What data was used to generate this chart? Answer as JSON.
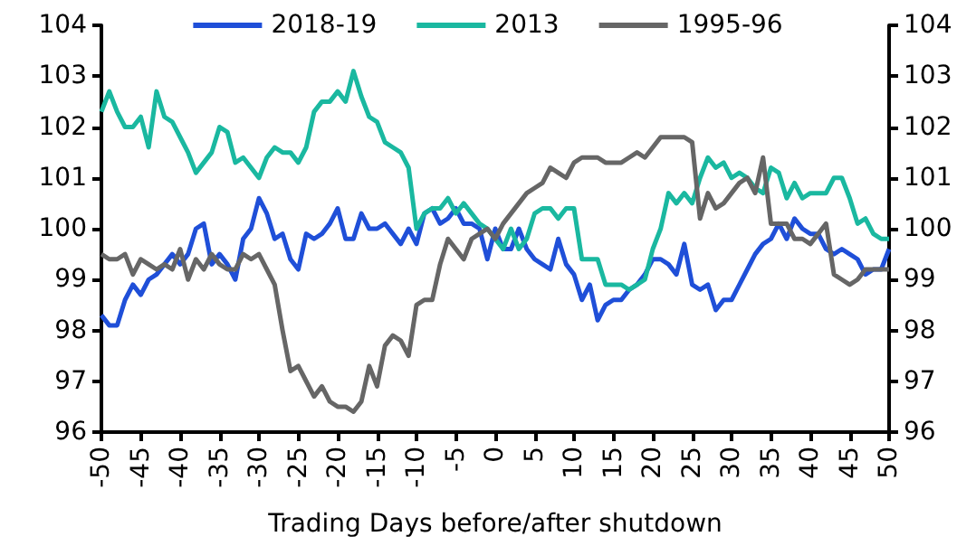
{
  "chart_data": {
    "type": "line",
    "xlabel": "Trading Days before/after shutdown",
    "x": [
      -50,
      -49,
      -48,
      -47,
      -46,
      -45,
      -44,
      -43,
      -42,
      -41,
      -40,
      -39,
      -38,
      -37,
      -36,
      -35,
      -34,
      -33,
      -32,
      -31,
      -30,
      -29,
      -28,
      -27,
      -26,
      -25,
      -24,
      -23,
      -22,
      -21,
      -20,
      -19,
      -18,
      -17,
      -16,
      -15,
      -14,
      -13,
      -12,
      -11,
      -10,
      -9,
      -8,
      -7,
      -6,
      -5,
      -4,
      -3,
      -2,
      -1,
      0,
      1,
      2,
      3,
      4,
      5,
      6,
      7,
      8,
      9,
      10,
      11,
      12,
      13,
      14,
      15,
      16,
      17,
      18,
      19,
      20,
      21,
      22,
      23,
      24,
      25,
      26,
      27,
      28,
      29,
      30,
      31,
      32,
      33,
      34,
      35,
      36,
      37,
      38,
      39,
      40,
      41,
      42,
      43,
      44,
      45,
      46,
      47,
      48,
      49,
      50
    ],
    "series": [
      {
        "name": "2018-19",
        "color": "#1f4fd8",
        "values": [
          98.3,
          98.1,
          98.1,
          98.6,
          98.9,
          98.7,
          99.0,
          99.1,
          99.3,
          99.5,
          99.3,
          99.5,
          100.0,
          100.1,
          99.3,
          99.5,
          99.3,
          99.0,
          99.8,
          100.0,
          100.6,
          100.3,
          99.8,
          99.9,
          99.4,
          99.2,
          99.9,
          99.8,
          99.9,
          100.1,
          100.4,
          99.8,
          99.8,
          100.3,
          100.0,
          100.0,
          100.1,
          99.9,
          99.7,
          100.0,
          99.7,
          100.3,
          100.4,
          100.1,
          100.2,
          100.4,
          100.1,
          100.1,
          100.0,
          99.4,
          100.0,
          99.6,
          99.6,
          100.0,
          99.6,
          99.4,
          99.3,
          99.2,
          99.8,
          99.3,
          99.1,
          98.6,
          98.9,
          98.2,
          98.5,
          98.6,
          98.6,
          98.8,
          98.9,
          99.1,
          99.4,
          99.4,
          99.3,
          99.1,
          99.7,
          98.9,
          98.8,
          98.9,
          98.4,
          98.6,
          98.6,
          98.9,
          99.2,
          99.5,
          99.7,
          99.8,
          100.1,
          99.8,
          100.2,
          100.0,
          99.9,
          99.9,
          99.6,
          99.5,
          99.6,
          99.5,
          99.4,
          99.1,
          99.2,
          99.2,
          99.6
        ]
      },
      {
        "name": "2013",
        "color": "#1ab8a0",
        "values": [
          102.3,
          102.7,
          102.3,
          102.0,
          102.0,
          102.2,
          101.6,
          102.7,
          102.2,
          102.1,
          101.8,
          101.5,
          101.1,
          101.3,
          101.5,
          102.0,
          101.9,
          101.3,
          101.4,
          101.2,
          101.0,
          101.4,
          101.6,
          101.5,
          101.5,
          101.3,
          101.6,
          102.3,
          102.5,
          102.5,
          102.7,
          102.5,
          103.1,
          102.6,
          102.2,
          102.1,
          101.7,
          101.6,
          101.5,
          101.2,
          100.0,
          100.3,
          100.4,
          100.4,
          100.6,
          100.3,
          100.5,
          100.3,
          100.1,
          100.0,
          99.8,
          99.6,
          100.0,
          99.6,
          99.8,
          100.3,
          100.4,
          100.4,
          100.2,
          100.4,
          100.4,
          99.4,
          99.4,
          99.4,
          98.9,
          98.9,
          98.9,
          98.8,
          98.9,
          99.0,
          99.6,
          100.0,
          100.7,
          100.5,
          100.7,
          100.5,
          101.0,
          101.4,
          101.2,
          101.3,
          101.0,
          101.1,
          101.0,
          100.8,
          100.7,
          101.2,
          101.1,
          100.6,
          100.9,
          100.6,
          100.7,
          100.7,
          100.7,
          101.0,
          101.0,
          100.6,
          100.1,
          100.2,
          99.9,
          99.8,
          99.8
        ]
      },
      {
        "name": "1995-96",
        "color": "#666666",
        "values": [
          99.5,
          99.4,
          99.4,
          99.5,
          99.1,
          99.4,
          99.3,
          99.2,
          99.3,
          99.2,
          99.6,
          99.0,
          99.4,
          99.2,
          99.5,
          99.3,
          99.2,
          99.2,
          99.5,
          99.4,
          99.5,
          99.2,
          98.9,
          98.0,
          97.2,
          97.3,
          97.0,
          96.7,
          96.9,
          96.6,
          96.5,
          96.5,
          96.4,
          96.6,
          97.3,
          96.9,
          97.7,
          97.9,
          97.8,
          97.5,
          98.5,
          98.6,
          98.6,
          99.3,
          99.8,
          99.6,
          99.4,
          99.8,
          99.9,
          100.0,
          99.8,
          100.1,
          100.3,
          100.5,
          100.7,
          100.8,
          100.9,
          101.2,
          101.1,
          101.0,
          101.3,
          101.4,
          101.4,
          101.4,
          101.3,
          101.3,
          101.3,
          101.4,
          101.5,
          101.4,
          101.6,
          101.8,
          101.8,
          101.8,
          101.8,
          101.7,
          100.2,
          100.7,
          100.4,
          100.5,
          100.7,
          100.9,
          101.0,
          100.7,
          101.4,
          100.1,
          100.1,
          100.1,
          99.8,
          99.8,
          99.7,
          99.9,
          100.1,
          99.1,
          99.0,
          98.9,
          99.0,
          99.2,
          99.2,
          99.2,
          99.2
        ]
      }
    ],
    "xlim": [
      -50,
      50
    ],
    "xticks": [
      -50,
      -45,
      -40,
      -35,
      -30,
      -25,
      -20,
      -15,
      -10,
      -5,
      0,
      5,
      10,
      15,
      20,
      25,
      30,
      35,
      40,
      45,
      50
    ],
    "ylim": [
      96,
      104
    ],
    "yticks": [
      96,
      97,
      98,
      99,
      100,
      101,
      102,
      103,
      104
    ],
    "y2lim": [
      96,
      104
    ],
    "y2ticks": [
      96,
      97,
      98,
      99,
      100,
      101,
      102,
      103,
      104
    ],
    "grid": false,
    "legend": "top",
    "marker": "none",
    "line_style": "solid"
  }
}
